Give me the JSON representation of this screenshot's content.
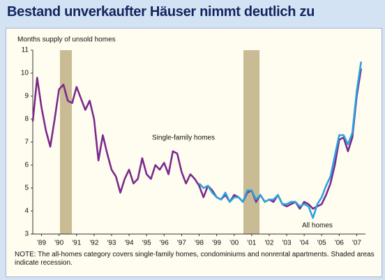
{
  "chart_data": {
    "type": "line",
    "title": "Bestand unverkaufter Häuser nimmt deutlich zu",
    "y_label": "Months supply of unsold homes",
    "annotations": [
      "Single-family homes",
      "All homes"
    ],
    "note": "NOTE: The all-homes category covers single-family homes, condominiums and nonrental apartments. Shaded areas indicate recession.",
    "xlim": [
      1989,
      2008
    ],
    "xticks": [
      {
        "value": 1989.5,
        "label": "'89"
      },
      {
        "value": 1990.5,
        "label": "'90"
      },
      {
        "value": 1991.5,
        "label": "'91"
      },
      {
        "value": 1992.5,
        "label": "'92"
      },
      {
        "value": 1993.5,
        "label": "'93"
      },
      {
        "value": 1994.5,
        "label": "'94"
      },
      {
        "value": 1995.5,
        "label": "'95"
      },
      {
        "value": 1996.5,
        "label": "'96"
      },
      {
        "value": 1997.5,
        "label": "'97"
      },
      {
        "value": 1998.5,
        "label": "'98"
      },
      {
        "value": 1999.5,
        "label": "'99"
      },
      {
        "value": 2000.5,
        "label": "'00"
      },
      {
        "value": 2001.5,
        "label": "'01"
      },
      {
        "value": 2002.5,
        "label": "'02"
      },
      {
        "value": 2003.5,
        "label": "'03"
      },
      {
        "value": 2004.5,
        "label": "'04"
      },
      {
        "value": 2005.5,
        "label": "'05"
      },
      {
        "value": 2006.5,
        "label": "'06"
      },
      {
        "value": 2007.5,
        "label": "'07"
      }
    ],
    "ylim": [
      3,
      11
    ],
    "yticks": [
      3,
      4,
      5,
      6,
      7,
      8,
      9,
      10,
      11
    ],
    "grid": false,
    "recession_color": "#c9bc94",
    "recessions": [
      [
        1990.55,
        1991.23
      ],
      [
        2001.03,
        2001.95
      ]
    ],
    "series": [
      {
        "name": "Single-family homes",
        "color": "#7b2a8c",
        "x": [
          1989,
          1989.25,
          1989.5,
          1989.75,
          1990,
          1990.25,
          1990.5,
          1990.75,
          1991,
          1991.25,
          1991.5,
          1991.75,
          1992,
          1992.25,
          1992.5,
          1992.75,
          1993,
          1993.25,
          1993.5,
          1993.75,
          1994,
          1994.25,
          1994.5,
          1994.75,
          1995,
          1995.25,
          1995.5,
          1995.75,
          1996,
          1996.25,
          1996.5,
          1996.75,
          1997,
          1997.25,
          1997.5,
          1997.75,
          1998,
          1998.25,
          1998.5,
          1998.75,
          1999,
          1999.25,
          1999.5,
          1999.75,
          2000,
          2000.25,
          2000.5,
          2000.75,
          2001,
          2001.25,
          2001.5,
          2001.75,
          2002,
          2002.25,
          2002.5,
          2002.75,
          2003,
          2003.25,
          2003.5,
          2003.75,
          2004,
          2004.25,
          2004.5,
          2004.75,
          2005,
          2005.25,
          2005.5,
          2005.75,
          2006,
          2006.25,
          2006.5,
          2006.75,
          2007,
          2007.25,
          2007.5,
          2007.75
        ],
        "values": [
          7.9,
          9.8,
          8.5,
          7.5,
          6.8,
          8.0,
          9.3,
          9.5,
          8.8,
          8.7,
          9.4,
          8.9,
          8.4,
          8.8,
          8.0,
          6.2,
          7.3,
          6.5,
          5.8,
          5.5,
          4.8,
          5.4,
          5.8,
          5.2,
          5.4,
          6.3,
          5.6,
          5.4,
          6.0,
          5.8,
          6.1,
          5.6,
          6.6,
          6.5,
          5.7,
          5.2,
          5.6,
          5.4,
          5.1,
          4.6,
          5.1,
          4.9,
          4.6,
          4.5,
          4.7,
          4.4,
          4.7,
          4.6,
          4.4,
          4.8,
          4.9,
          4.4,
          4.7,
          4.4,
          4.5,
          4.4,
          4.7,
          4.3,
          4.2,
          4.3,
          4.4,
          4.1,
          4.4,
          4.3,
          4.1,
          4.2,
          4.3,
          4.7,
          5.2,
          6.0,
          7.1,
          7.2,
          6.6,
          7.2,
          9.0,
          10.2
        ]
      },
      {
        "name": "All homes",
        "color": "#2aa4de",
        "x": [
          1998.5,
          1998.75,
          1999,
          1999.25,
          1999.5,
          1999.75,
          2000,
          2000.25,
          2000.5,
          2000.75,
          2001,
          2001.25,
          2001.5,
          2001.75,
          2002,
          2002.25,
          2002.5,
          2002.75,
          2003,
          2003.25,
          2003.5,
          2003.75,
          2004,
          2004.25,
          2004.5,
          2004.75,
          2005,
          2005.25,
          2005.5,
          2005.75,
          2006,
          2006.25,
          2006.5,
          2006.75,
          2007,
          2007.25,
          2007.5,
          2007.75
        ],
        "values": [
          5.2,
          5.0,
          5.1,
          4.8,
          4.6,
          4.5,
          4.8,
          4.4,
          4.6,
          4.6,
          4.4,
          4.9,
          4.9,
          4.5,
          4.7,
          4.4,
          4.5,
          4.5,
          4.7,
          4.3,
          4.3,
          4.4,
          4.4,
          4.2,
          4.3,
          4.2,
          3.7,
          4.3,
          4.6,
          5.1,
          5.5,
          6.4,
          7.3,
          7.3,
          6.9,
          7.4,
          9.2,
          10.5
        ]
      }
    ]
  }
}
